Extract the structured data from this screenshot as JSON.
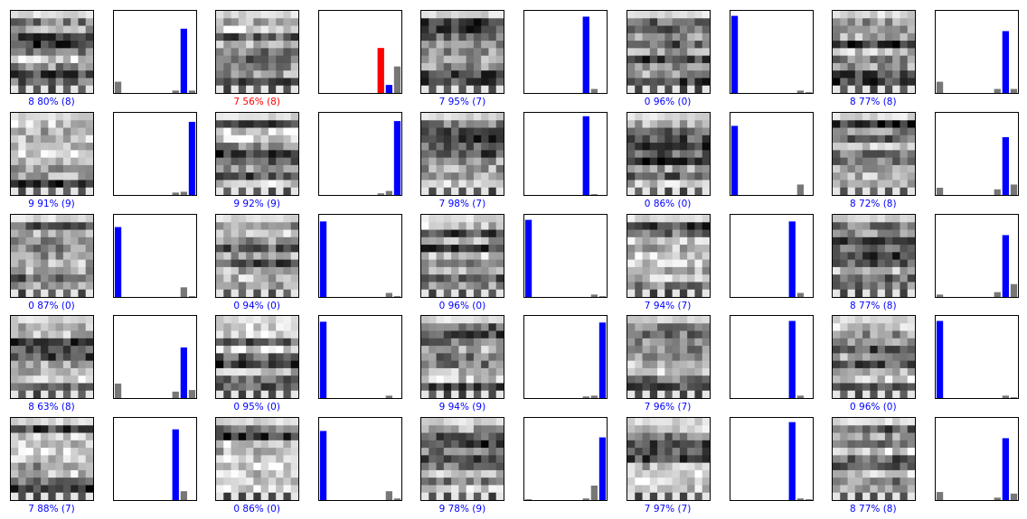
{
  "colors": {
    "correct": "#0000ff",
    "wrong": "#ff0000",
    "other": "#777777"
  },
  "chart_data": {
    "type": "bar",
    "categories": [
      "0",
      "1",
      "2",
      "3",
      "4",
      "5",
      "6",
      "7",
      "8",
      "9"
    ],
    "ylim": [
      0,
      1
    ],
    "panels": [
      {
        "pred": 8,
        "true": 8,
        "conf": 80,
        "label": "8 80% (8)",
        "correct": true,
        "values": [
          0.14,
          0,
          0,
          0,
          0,
          0,
          0,
          0.03,
          0.8,
          0.03
        ]
      },
      {
        "pred": 7,
        "true": 8,
        "conf": 56,
        "label": "7 56% (8)",
        "correct": false,
        "values": [
          0,
          0,
          0,
          0,
          0,
          0,
          0,
          0.56,
          0.1,
          0.33
        ]
      },
      {
        "pred": 7,
        "true": 7,
        "conf": 95,
        "label": "7 95% (7)",
        "correct": true,
        "values": [
          0,
          0,
          0,
          0,
          0,
          0,
          0,
          0.95,
          0.05,
          0
        ]
      },
      {
        "pred": 0,
        "true": 0,
        "conf": 96,
        "label": "0 96% (0)",
        "correct": true,
        "values": [
          0.96,
          0,
          0,
          0,
          0,
          0,
          0,
          0,
          0.03,
          0.01
        ]
      },
      {
        "pred": 8,
        "true": 8,
        "conf": 77,
        "label": "8 77% (8)",
        "correct": true,
        "values": [
          0.14,
          0,
          0,
          0,
          0,
          0,
          0,
          0.05,
          0.77,
          0.05
        ]
      },
      {
        "pred": 9,
        "true": 9,
        "conf": 91,
        "label": "9 91% (9)",
        "correct": true,
        "values": [
          0,
          0,
          0,
          0,
          0,
          0,
          0,
          0.03,
          0.04,
          0.91
        ]
      },
      {
        "pred": 9,
        "true": 9,
        "conf": 92,
        "label": "9 92% (9)",
        "correct": true,
        "values": [
          0,
          0,
          0,
          0,
          0,
          0,
          0,
          0.02,
          0.05,
          0.92
        ]
      },
      {
        "pred": 7,
        "true": 7,
        "conf": 98,
        "label": "7 98% (7)",
        "correct": true,
        "values": [
          0,
          0,
          0,
          0,
          0,
          0,
          0,
          0.98,
          0.01,
          0
        ]
      },
      {
        "pred": 0,
        "true": 0,
        "conf": 86,
        "label": "0 86% (0)",
        "correct": true,
        "values": [
          0.86,
          0,
          0,
          0,
          0,
          0,
          0,
          0,
          0.13,
          0
        ]
      },
      {
        "pred": 8,
        "true": 8,
        "conf": 72,
        "label": "8 72% (8)",
        "correct": true,
        "values": [
          0.09,
          0,
          0,
          0,
          0,
          0,
          0,
          0.07,
          0.72,
          0.13
        ]
      },
      {
        "pred": 0,
        "true": 0,
        "conf": 87,
        "label": "0 87% (0)",
        "correct": true,
        "values": [
          0.87,
          0,
          0,
          0,
          0,
          0,
          0,
          0,
          0.12,
          0.01
        ]
      },
      {
        "pred": 0,
        "true": 0,
        "conf": 94,
        "label": "0 94% (0)",
        "correct": true,
        "values": [
          0.94,
          0,
          0,
          0,
          0,
          0,
          0,
          0,
          0.05,
          0.01
        ]
      },
      {
        "pred": 0,
        "true": 0,
        "conf": 96,
        "label": "0 96% (0)",
        "correct": true,
        "values": [
          0.96,
          0,
          0,
          0,
          0,
          0,
          0,
          0,
          0.03,
          0.01
        ]
      },
      {
        "pred": 7,
        "true": 7,
        "conf": 94,
        "label": "7 94% (7)",
        "correct": true,
        "values": [
          0,
          0,
          0,
          0,
          0,
          0,
          0,
          0.94,
          0.05,
          0
        ]
      },
      {
        "pred": 8,
        "true": 8,
        "conf": 77,
        "label": "8 77% (8)",
        "correct": true,
        "values": [
          0.03,
          0,
          0,
          0,
          0,
          0,
          0,
          0.06,
          0.77,
          0.16
        ]
      },
      {
        "pred": 8,
        "true": 8,
        "conf": 63,
        "label": "8 63% (8)",
        "correct": true,
        "values": [
          0.18,
          0,
          0,
          0,
          0,
          0,
          0,
          0.08,
          0.63,
          0.1
        ]
      },
      {
        "pred": 0,
        "true": 0,
        "conf": 95,
        "label": "0 95% (0)",
        "correct": true,
        "values": [
          0.95,
          0,
          0,
          0,
          0,
          0,
          0,
          0,
          0.03,
          0
        ]
      },
      {
        "pred": 9,
        "true": 9,
        "conf": 94,
        "label": "9 94% (9)",
        "correct": true,
        "values": [
          0,
          0,
          0,
          0,
          0,
          0,
          0,
          0.02,
          0.03,
          0.94
        ]
      },
      {
        "pred": 7,
        "true": 7,
        "conf": 96,
        "label": "7 96% (7)",
        "correct": true,
        "values": [
          0,
          0,
          0,
          0,
          0,
          0,
          0,
          0.96,
          0.03,
          0
        ]
      },
      {
        "pred": 0,
        "true": 0,
        "conf": 96,
        "label": "0 96% (0)",
        "correct": true,
        "values": [
          0.96,
          0,
          0,
          0,
          0,
          0,
          0,
          0,
          0.03,
          0.01
        ]
      },
      {
        "pred": 7,
        "true": 7,
        "conf": 88,
        "label": "7 88% (7)",
        "correct": true,
        "values": [
          0,
          0,
          0,
          0,
          0,
          0,
          0,
          0.88,
          0.11,
          0
        ]
      },
      {
        "pred": 0,
        "true": 0,
        "conf": 86,
        "label": "0 86% (0)",
        "correct": true,
        "values": [
          0.86,
          0,
          0,
          0,
          0,
          0,
          0,
          0,
          0.11,
          0.02
        ]
      },
      {
        "pred": 9,
        "true": 9,
        "conf": 78,
        "label": "9 78% (9)",
        "correct": true,
        "values": [
          0.01,
          0,
          0,
          0,
          0,
          0,
          0,
          0.02,
          0.18,
          0.78
        ]
      },
      {
        "pred": 7,
        "true": 7,
        "conf": 97,
        "label": "7 97% (7)",
        "correct": true,
        "values": [
          0,
          0,
          0,
          0,
          0,
          0,
          0,
          0.97,
          0.02,
          0.01
        ]
      },
      {
        "pred": 8,
        "true": 8,
        "conf": 77,
        "label": "8 77% (8)",
        "correct": true,
        "values": [
          0.1,
          0,
          0,
          0,
          0,
          0,
          0,
          0.03,
          0.77,
          0.08
        ]
      }
    ]
  }
}
